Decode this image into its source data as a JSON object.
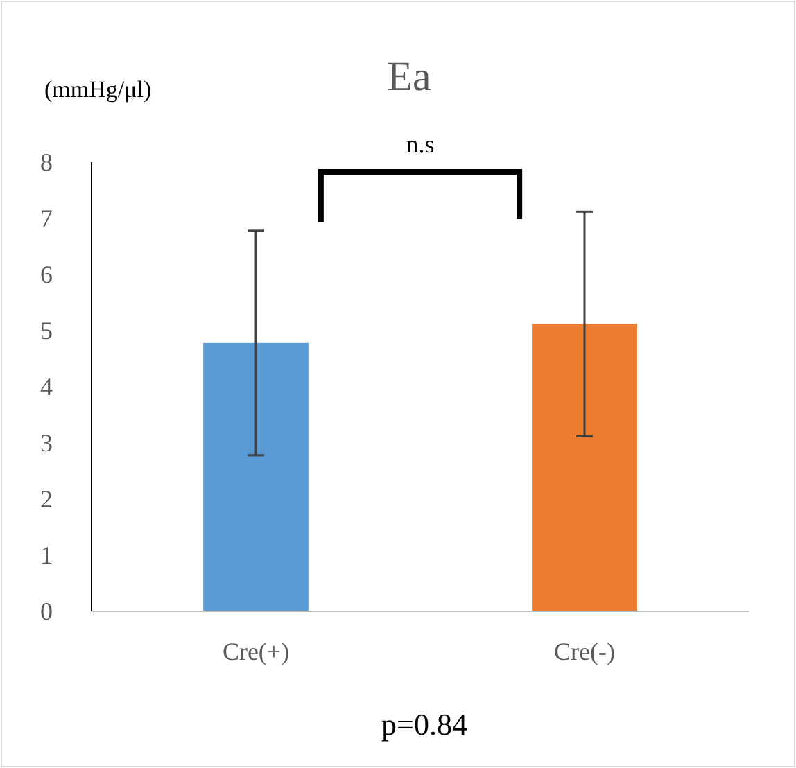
{
  "chart_data": {
    "type": "bar",
    "title": "Ea",
    "ylabel": "(mmHg/μl)",
    "categories": [
      "Cre(+)",
      "Cre(-)"
    ],
    "values": [
      4.78,
      5.12
    ],
    "colors": [
      "#5b9bd5",
      "#ed7d31"
    ],
    "errors": [
      2.0,
      2.0
    ],
    "ylim": [
      0,
      8
    ],
    "yticks": [
      0,
      1,
      2,
      3,
      4,
      5,
      6,
      7,
      8
    ],
    "annotations": [
      "n.s",
      "p=0.84"
    ]
  }
}
